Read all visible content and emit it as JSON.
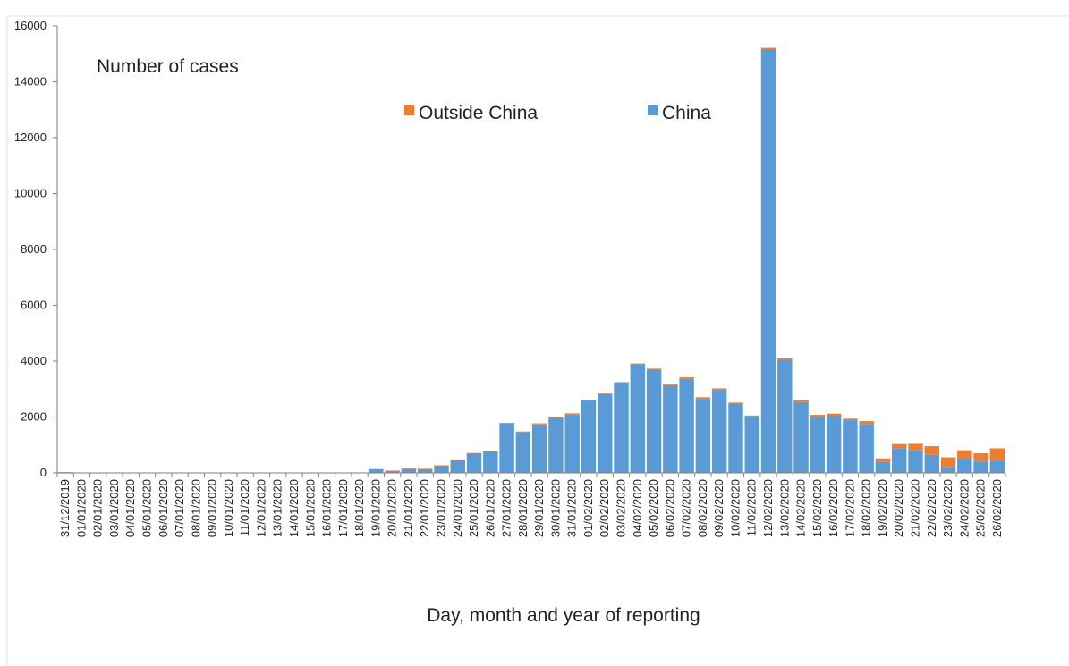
{
  "chart_data": {
    "type": "bar",
    "stacked": true,
    "title": "",
    "ylabel": "Number of cases",
    "xlabel": "Day, month and year of reporting",
    "ylim": [
      0,
      16000
    ],
    "yticks": [
      0,
      2000,
      4000,
      6000,
      8000,
      10000,
      12000,
      14000,
      16000
    ],
    "grid": false,
    "legend_position": "top-center",
    "categories": [
      "31/12/2019",
      "01/01/2020",
      "02/01/2020",
      "03/01/2020",
      "04/01/2020",
      "05/01/2020",
      "06/01/2020",
      "07/01/2020",
      "08/01/2020",
      "09/01/2020",
      "10/01/2020",
      "11/01/2020",
      "12/01/2020",
      "13/01/2020",
      "14/01/2020",
      "15/01/2020",
      "16/01/2020",
      "17/01/2020",
      "18/01/2020",
      "19/01/2020",
      "20/01/2020",
      "21/01/2020",
      "22/01/2020",
      "23/01/2020",
      "24/01/2020",
      "25/01/2020",
      "26/01/2020",
      "27/01/2020",
      "28/01/2020",
      "29/01/2020",
      "30/01/2020",
      "31/01/2020",
      "01/02/2020",
      "02/02/2020",
      "03/02/2020",
      "04/02/2020",
      "05/02/2020",
      "06/02/2020",
      "07/02/2020",
      "08/02/2020",
      "09/02/2020",
      "10/02/2020",
      "11/02/2020",
      "12/02/2020",
      "13/02/2020",
      "14/02/2020",
      "15/02/2020",
      "16/02/2020",
      "17/02/2020",
      "18/02/2020",
      "19/02/2020",
      "20/02/2020",
      "21/02/2020",
      "22/02/2020",
      "23/02/2020",
      "24/02/2020",
      "25/02/2020",
      "26/02/2020"
    ],
    "series": [
      {
        "name": "China",
        "color": "#5b9bd5",
        "values": [
          27,
          0,
          0,
          0,
          0,
          0,
          0,
          0,
          0,
          0,
          0,
          0,
          0,
          0,
          0,
          0,
          0,
          4,
          17,
          136,
          77,
          149,
          131,
          259,
          444,
          688,
          769,
          1771,
          1459,
          1737,
          1982,
          2102,
          2590,
          2829,
          3235,
          3887,
          3694,
          3143,
          3385,
          2652,
          2973,
          2467,
          2015,
          15152,
          4050,
          2538,
          2007,
          2048,
          1886,
          1749,
          394,
          889,
          823,
          648,
          214,
          508,
          406,
          433
        ]
      },
      {
        "name": "Outside China",
        "color": "#ed7d31",
        "values": [
          0,
          0,
          0,
          0,
          0,
          0,
          0,
          0,
          0,
          0,
          0,
          0,
          0,
          0,
          0,
          0,
          0,
          0,
          0,
          0,
          4,
          6,
          17,
          11,
          9,
          23,
          19,
          21,
          22,
          36,
          21,
          30,
          19,
          15,
          15,
          30,
          39,
          37,
          40,
          59,
          52,
          51,
          39,
          60,
          54,
          63,
          70,
          74,
          57,
          106,
          126,
          145,
          220,
          309,
          346,
          304,
          298,
          448
        ]
      }
    ]
  },
  "legend": {
    "items": [
      {
        "label": "Outside China",
        "color": "#ed7d31"
      },
      {
        "label": "China",
        "color": "#5b9bd5"
      }
    ]
  },
  "colors": {
    "axis": "#7f7f7f",
    "text": "#222222",
    "bar_outline": "#ffffff"
  }
}
